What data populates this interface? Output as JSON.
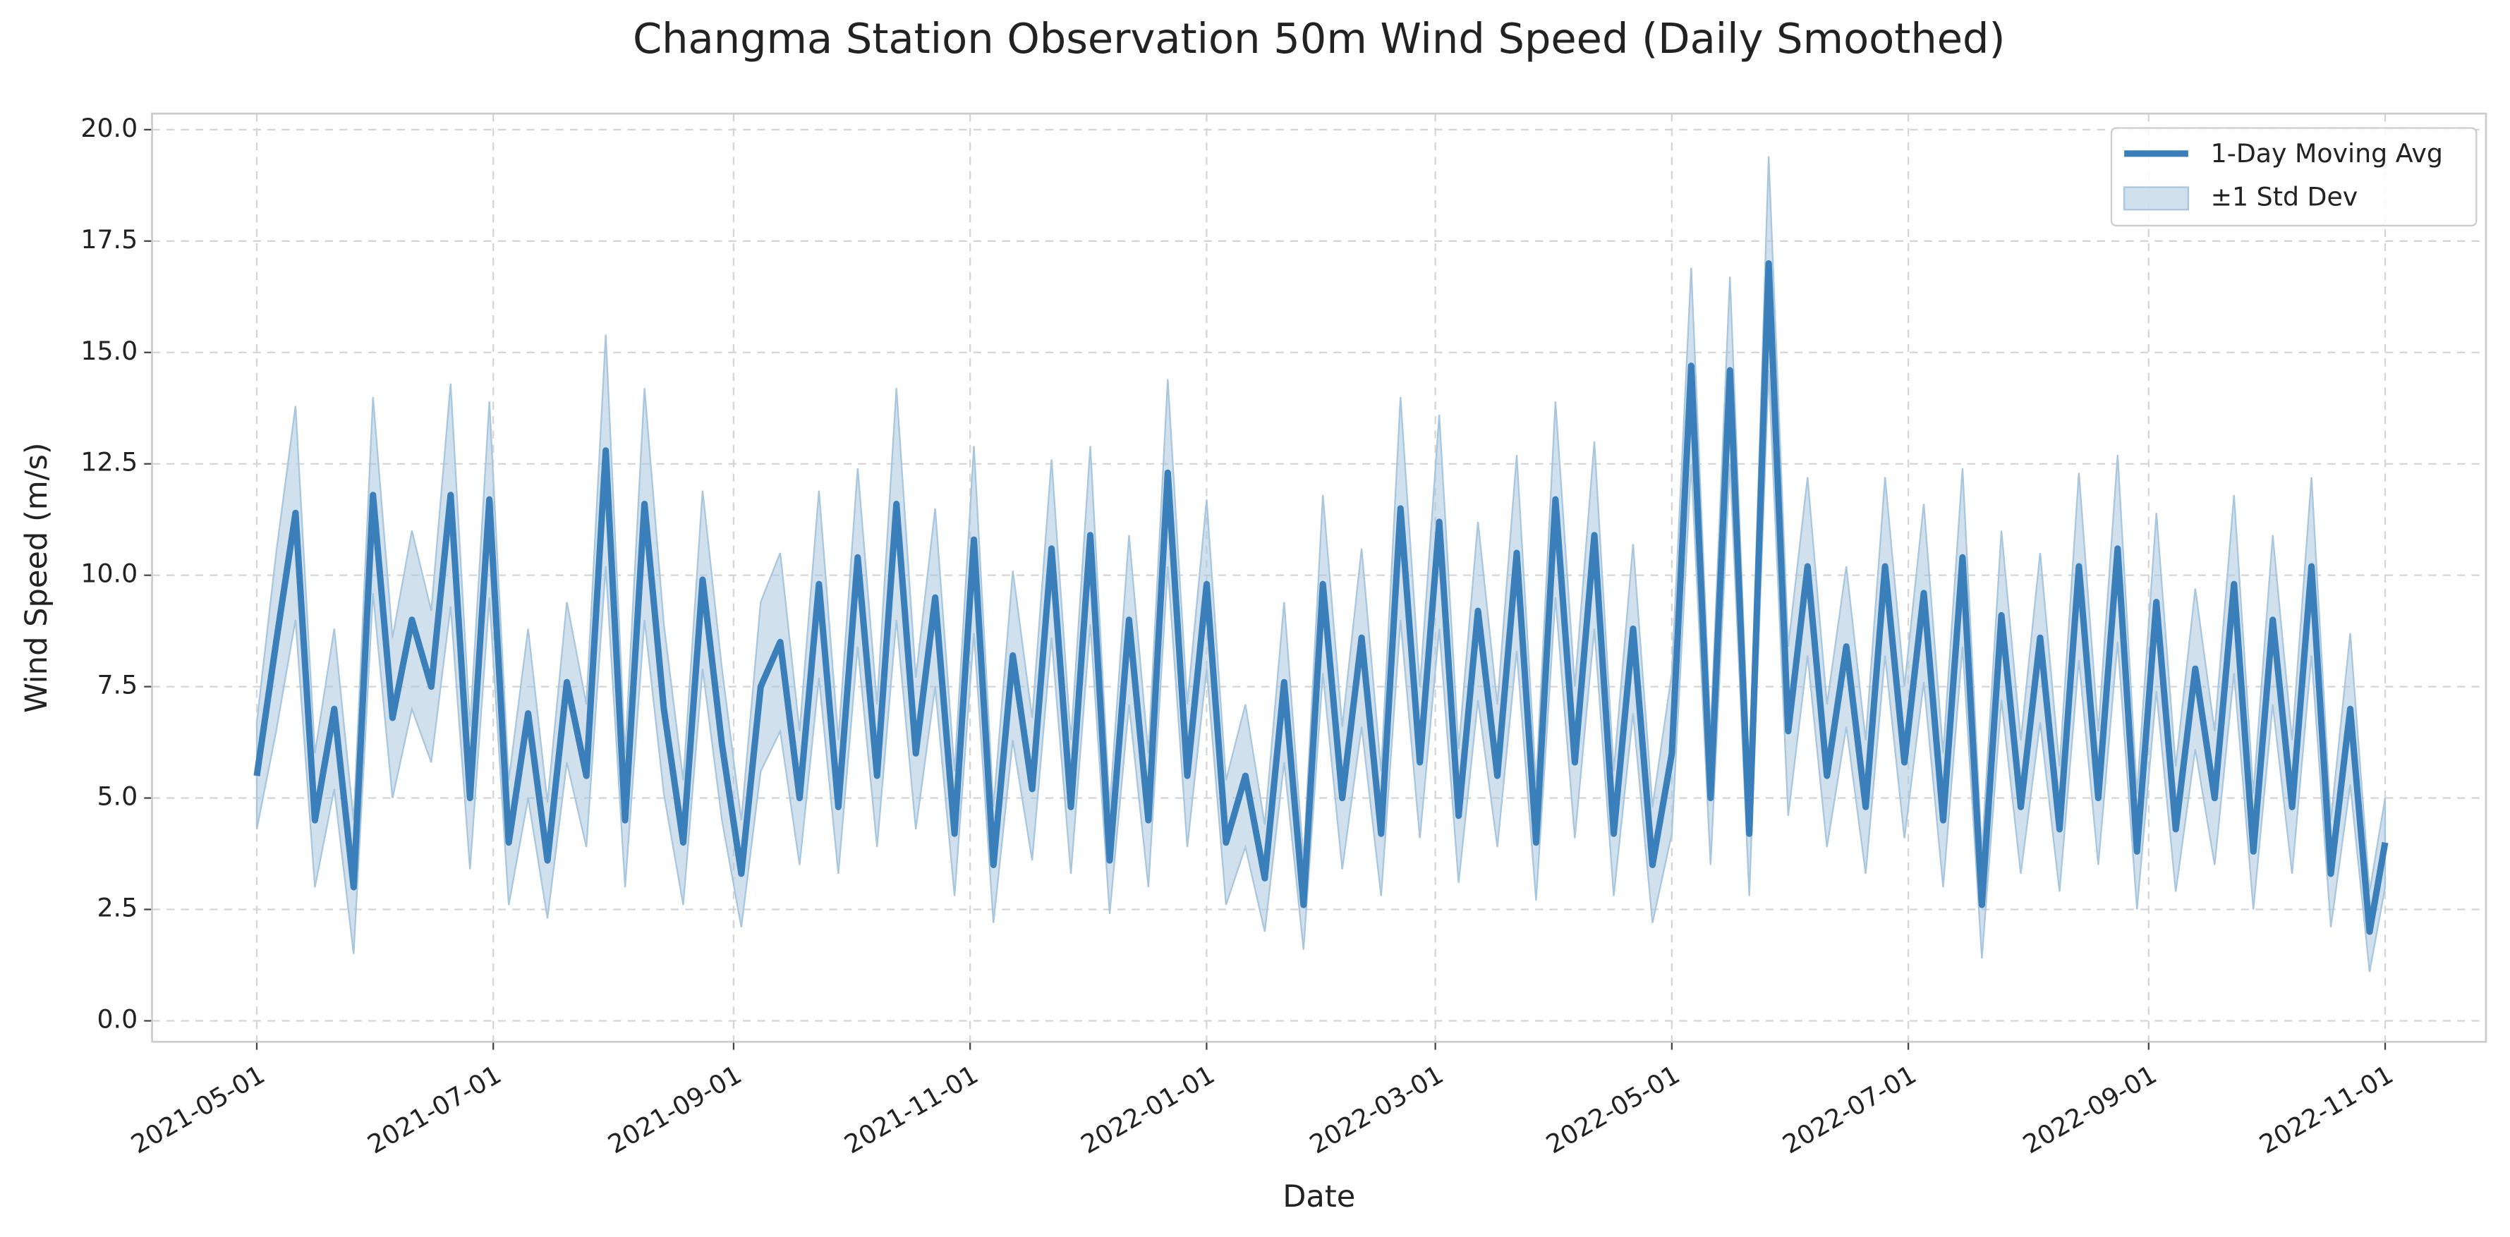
{
  "chart_data": {
    "type": "line",
    "title": "Changma Station Observation 50m Wind Speed (Daily Smoothed)",
    "x_label": "Date",
    "y_label": "Wind Speed (m/s)",
    "xlim": [
      "2021-04-04",
      "2022-11-27"
    ],
    "ylim": [
      -0.47,
      20.36
    ],
    "xticks": [
      "2021-05-01",
      "2021-07-01",
      "2021-09-01",
      "2021-11-01",
      "2022-01-01",
      "2022-03-01",
      "2022-05-01",
      "2022-07-01",
      "2022-09-01",
      "2022-11-01"
    ],
    "yticks": [
      {
        "value": 0,
        "label": "0.0"
      },
      2.5,
      {
        "value": 5,
        "label": "5.0"
      },
      7.5,
      {
        "value": 10,
        "label": "10.0"
      },
      12.5,
      {
        "value": 15,
        "label": "15.0"
      },
      17.5,
      {
        "value": 20,
        "label": "20.0"
      }
    ],
    "grid": true,
    "legend": "upper right",
    "band_label": "±1 Std Dev",
    "band_color": "#a9c6df",
    "x": [
      "2021-05-01",
      "2021-05-06",
      "2021-05-11",
      "2021-05-16",
      "2021-05-21",
      "2021-05-26",
      "2021-05-31",
      "2021-06-05",
      "2021-06-10",
      "2021-06-15",
      "2021-06-20",
      "2021-06-25",
      "2021-06-30",
      "2021-07-05",
      "2021-07-10",
      "2021-07-15",
      "2021-07-20",
      "2021-07-25",
      "2021-07-30",
      "2021-08-04",
      "2021-08-09",
      "2021-08-14",
      "2021-08-19",
      "2021-08-24",
      "2021-08-29",
      "2021-09-03",
      "2021-09-08",
      "2021-09-13",
      "2021-09-18",
      "2021-09-23",
      "2021-09-28",
      "2021-10-03",
      "2021-10-08",
      "2021-10-13",
      "2021-10-18",
      "2021-10-23",
      "2021-10-28",
      "2021-11-02",
      "2021-11-07",
      "2021-11-12",
      "2021-11-17",
      "2021-11-22",
      "2021-11-27",
      "2021-12-02",
      "2021-12-07",
      "2021-12-12",
      "2021-12-17",
      "2021-12-22",
      "2021-12-27",
      "2022-01-01",
      "2022-01-06",
      "2022-01-11",
      "2022-01-16",
      "2022-01-21",
      "2022-01-26",
      "2022-01-31",
      "2022-02-05",
      "2022-02-10",
      "2022-02-15",
      "2022-02-20",
      "2022-02-25",
      "2022-03-02",
      "2022-03-07",
      "2022-03-12",
      "2022-03-17",
      "2022-03-22",
      "2022-03-27",
      "2022-04-01",
      "2022-04-06",
      "2022-04-11",
      "2022-04-16",
      "2022-04-21",
      "2022-04-26",
      "2022-05-01",
      "2022-05-06",
      "2022-05-11",
      "2022-05-16",
      "2022-05-21",
      "2022-05-26",
      "2022-05-31",
      "2022-06-05",
      "2022-06-10",
      "2022-06-15",
      "2022-06-20",
      "2022-06-25",
      "2022-06-30",
      "2022-07-05",
      "2022-07-10",
      "2022-07-15",
      "2022-07-20",
      "2022-07-25",
      "2022-07-30",
      "2022-08-04",
      "2022-08-09",
      "2022-08-14",
      "2022-08-19",
      "2022-08-24",
      "2022-08-29",
      "2022-09-03",
      "2022-09-08",
      "2022-09-13",
      "2022-09-18",
      "2022-09-23",
      "2022-09-28",
      "2022-10-03",
      "2022-10-08",
      "2022-10-13",
      "2022-10-18",
      "2022-10-23",
      "2022-10-28",
      "2022-11-01"
    ],
    "series": [
      {
        "name": "1-Day Moving Avg",
        "color": "#3a7fb9",
        "values": [
          5.5,
          8.5,
          11.4,
          4.5,
          7.0,
          3.0,
          11.8,
          6.8,
          9.0,
          7.5,
          11.8,
          5.0,
          11.7,
          4.0,
          6.9,
          3.6,
          7.6,
          5.5,
          12.8,
          4.5,
          11.6,
          7.0,
          4.0,
          9.9,
          6.2,
          3.3,
          7.5,
          8.5,
          5.0,
          9.8,
          4.8,
          10.4,
          5.5,
          11.6,
          6.0,
          9.5,
          4.2,
          10.8,
          3.5,
          8.2,
          5.2,
          10.6,
          4.8,
          10.9,
          3.6,
          9.0,
          4.5,
          12.3,
          5.5,
          9.8,
          4.0,
          5.5,
          3.2,
          7.6,
          2.6,
          9.8,
          5.0,
          8.6,
          4.2,
          11.5,
          5.8,
          11.2,
          4.6,
          9.2,
          5.5,
          10.5,
          4.0,
          11.7,
          5.8,
          10.9,
          4.2,
          8.8,
          3.5,
          6.0,
          14.7,
          5.0,
          14.6,
          4.2,
          17.0,
          6.5,
          10.2,
          5.5,
          8.4,
          4.8,
          10.2,
          5.8,
          9.6,
          4.5,
          10.4,
          2.6,
          9.1,
          4.8,
          8.6,
          4.3,
          10.2,
          5.0,
          10.6,
          3.8,
          9.4,
          4.3,
          7.9,
          5.0,
          9.8,
          3.8,
          9.0,
          4.8,
          10.2,
          3.3,
          7.0,
          2.0,
          4.0
        ],
        "std": [
          1.2,
          2.0,
          2.4,
          1.5,
          1.8,
          1.5,
          2.2,
          1.8,
          2.0,
          1.7,
          2.5,
          1.6,
          2.2,
          1.4,
          1.9,
          1.3,
          1.8,
          1.6,
          2.6,
          1.5,
          2.6,
          1.9,
          1.4,
          2.0,
          1.7,
          1.2,
          1.9,
          2.0,
          1.5,
          2.1,
          1.5,
          2.0,
          1.6,
          2.6,
          1.7,
          2.0,
          1.4,
          2.1,
          1.3,
          1.9,
          1.6,
          2.0,
          1.5,
          2.0,
          1.2,
          1.9,
          1.5,
          2.1,
          1.6,
          1.9,
          1.4,
          1.6,
          1.2,
          1.8,
          1.0,
          2.0,
          1.6,
          2.0,
          1.4,
          2.5,
          1.7,
          2.4,
          1.5,
          2.0,
          1.6,
          2.2,
          1.3,
          2.2,
          1.7,
          2.1,
          1.4,
          1.9,
          1.3,
          1.8,
          2.2,
          1.5,
          2.1,
          1.4,
          2.4,
          1.9,
          2.0,
          1.6,
          1.8,
          1.5,
          2.0,
          1.7,
          2.0,
          1.5,
          2.0,
          1.2,
          1.9,
          1.5,
          1.9,
          1.4,
          2.1,
          1.5,
          2.1,
          1.3,
          2.0,
          1.4,
          1.8,
          1.5,
          2.0,
          1.3,
          1.9,
          1.5,
          2.0,
          1.2,
          1.7,
          0.9,
          1.0
        ]
      }
    ]
  }
}
